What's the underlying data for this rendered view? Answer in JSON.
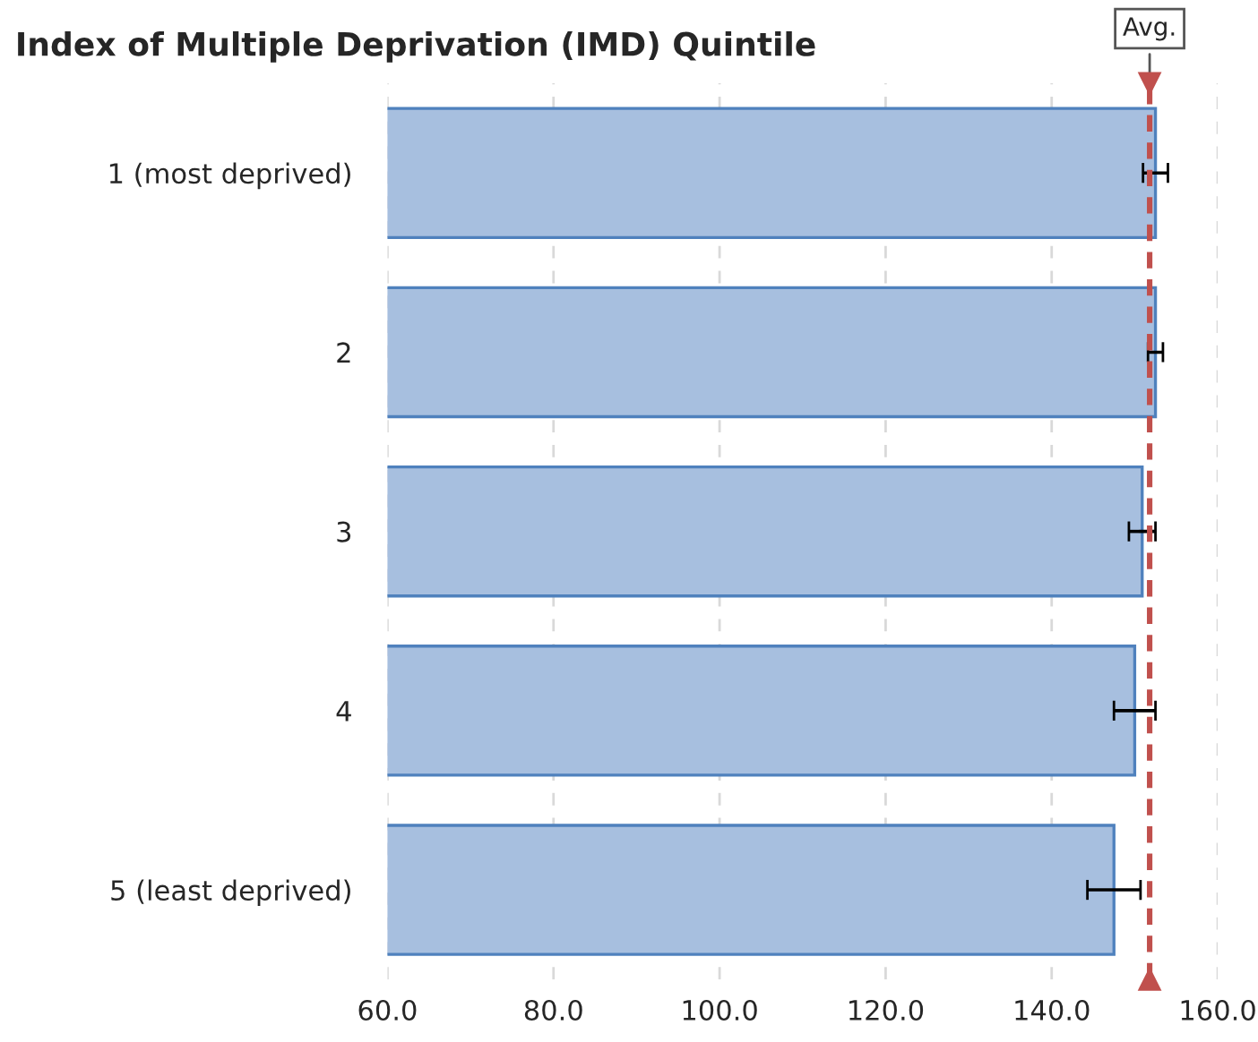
{
  "chart_data": {
    "type": "bar",
    "orientation": "horizontal",
    "title": "Index of Multiple Deprivation (IMD) Quintile",
    "categories": [
      "1 (most deprived)",
      "2",
      "3",
      "4",
      "5 (least deprived)"
    ],
    "values": [
      152.5,
      152.5,
      150.9,
      150.0,
      147.5
    ],
    "errors": [
      1.5,
      0.9,
      1.6,
      2.5,
      3.2
    ],
    "color": "#a7bfdf",
    "xlim": [
      60,
      160
    ],
    "xticks": [
      {
        "value": 60,
        "label": "60.0"
      },
      {
        "value": 80,
        "label": "80.0"
      },
      {
        "value": 100,
        "label": "100.0"
      },
      {
        "value": 120,
        "label": "120.0"
      },
      {
        "value": 140,
        "label": "140.0"
      },
      {
        "value": 160,
        "label": "160.0"
      }
    ],
    "grid": "x",
    "ref_lines": [
      {
        "axis": "x",
        "value": 151.8,
        "label": "Avg.",
        "color": "#c0504d",
        "line_style": "dashed"
      }
    ]
  }
}
